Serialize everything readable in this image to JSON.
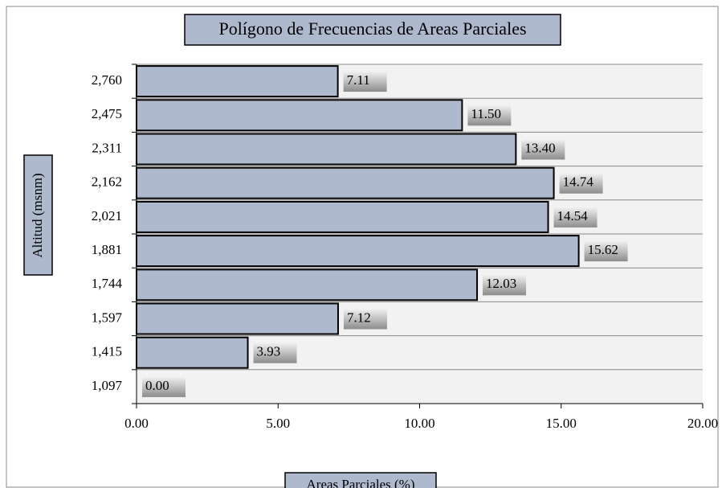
{
  "chart_data": {
    "type": "bar",
    "orientation": "horizontal",
    "title": "Polígono de Frecuencias de Areas Parciales",
    "xlabel": "Areas Parciales (%)",
    "ylabel": "Altitud (msnm)",
    "categories": [
      "2,760",
      "2,475",
      "2,311",
      "2,162",
      "2,021",
      "1,881",
      "1,744",
      "1,597",
      "1,415",
      "1,097"
    ],
    "values": [
      7.11,
      11.5,
      13.4,
      14.74,
      14.54,
      15.62,
      12.03,
      7.12,
      3.93,
      0
    ],
    "value_labels": [
      "7.11",
      "11.50",
      "13.40",
      "14.74",
      "14.54",
      "15.62",
      "12.03",
      "7.12",
      "3.93",
      "0.00"
    ],
    "color": "#aeb9ce",
    "xlim": [
      0,
      20
    ],
    "xticks": [
      {
        "value": 0,
        "label": "0.00"
      },
      {
        "value": 5,
        "label": "5.00"
      },
      {
        "value": 10,
        "label": "10.00"
      },
      {
        "value": 15,
        "label": "15.00"
      },
      {
        "value": 20,
        "label": "20.00"
      }
    ],
    "grid": true
  }
}
